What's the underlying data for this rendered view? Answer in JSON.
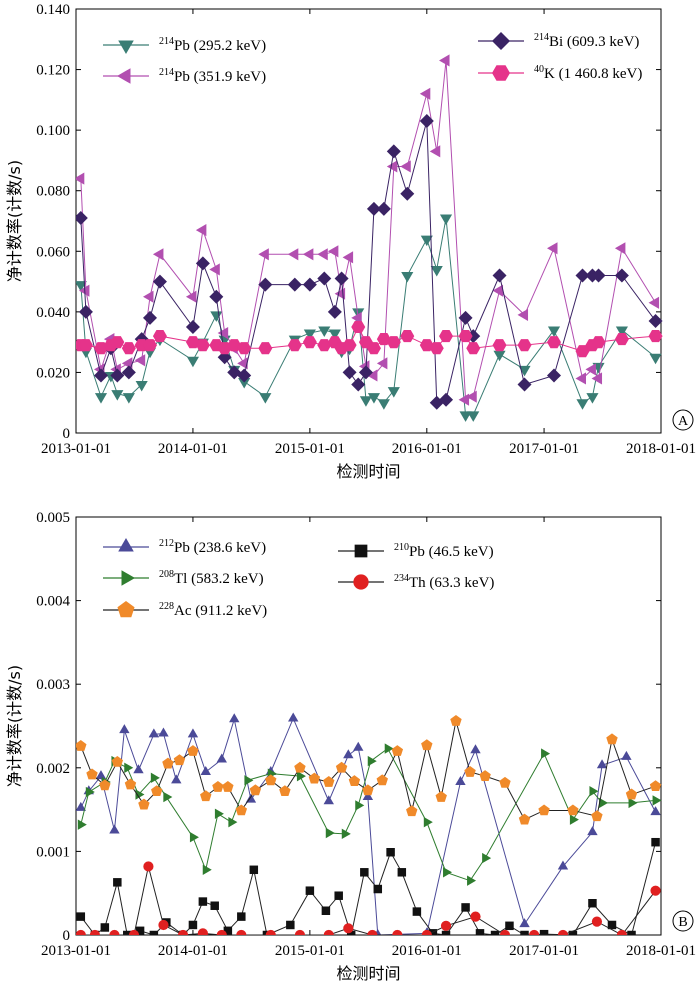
{
  "colors": {
    "pb214_295": "#3a7d74",
    "pb214_351": "#b24fb0",
    "bi214": "#3a2364",
    "k40": "#e5338a",
    "pb212": "#4b4a98",
    "tl208": "#2f7d2f",
    "ac228": "#f08a2a",
    "pb210": "#111111",
    "th234": "#e02020",
    "axis": "#000000"
  },
  "chart_data": [
    {
      "type": "line",
      "panel_label": "A",
      "xlabel": "检测时间",
      "ylabel": "净计数率(计数/s)",
      "xticks": [
        "2013-01-01",
        "2014-01-01",
        "2015-01-01",
        "2016-01-01",
        "2017-01-01",
        "2018-01-01"
      ],
      "yticks": [
        "0",
        "0.020",
        "0.040",
        "0.060",
        "0.080",
        "0.100",
        "0.120",
        "0.140"
      ],
      "xlim": [
        "2013-01-01",
        "2018-01-01"
      ],
      "ylim": [
        0,
        0.14
      ],
      "legend": [
        {
          "key": "pb214_295",
          "iso": "214",
          "el": "Pb",
          "energy": " (295.2 keV)"
        },
        {
          "key": "pb214_351",
          "iso": "214",
          "el": "Pb",
          "energy": " (351.9 keV)"
        },
        {
          "key": "bi214",
          "iso": "214",
          "el": "Bi",
          "energy": " (609.3 keV)"
        },
        {
          "key": "k40",
          "iso": "40",
          "el": "K",
          "energy": " (1 460.8 keV)"
        }
      ],
      "series": [
        {
          "key": "pb214_295",
          "marker": "tri-down",
          "x": [
            "2013-01-16",
            "2013-02-01",
            "2013-03-20",
            "2013-04-20",
            "2013-05-10",
            "2013-06-15",
            "2013-07-25",
            "2013-08-20",
            "2013-09-20",
            "2014-01-01",
            "2014-02-01",
            "2014-03-15",
            "2014-04-10",
            "2014-05-10",
            "2014-06-10",
            "2014-08-15",
            "2014-11-15",
            "2015-01-01",
            "2015-02-15",
            "2015-03-20",
            "2015-04-10",
            "2015-05-05",
            "2015-06-01",
            "2015-06-25",
            "2015-07-20",
            "2015-08-20",
            "2015-09-20",
            "2015-11-01",
            "2016-01-01",
            "2016-02-01",
            "2016-03-01",
            "2016-05-01",
            "2016-05-25",
            "2016-08-15",
            "2016-11-01",
            "2017-02-01",
            "2017-05-01",
            "2017-06-01",
            "2017-06-20",
            "2017-09-01",
            "2017-12-15"
          ],
          "y": [
            0.049,
            0.027,
            0.012,
            0.019,
            0.013,
            0.012,
            0.016,
            0.027,
            0.031,
            0.024,
            0.03,
            0.039,
            0.031,
            0.021,
            0.017,
            0.012,
            0.031,
            0.033,
            0.034,
            0.033,
            0.027,
            0.028,
            0.04,
            0.011,
            0.012,
            0.01,
            0.014,
            0.052,
            0.064,
            0.054,
            0.071,
            0.006,
            0.006,
            0.026,
            0.021,
            0.034,
            0.01,
            0.012,
            0.022,
            0.034,
            0.025
          ]
        },
        {
          "key": "pb214_351",
          "marker": "tri-left",
          "x": [
            "2013-01-16",
            "2013-02-01",
            "2013-03-20",
            "2013-04-20",
            "2013-05-10",
            "2013-06-15",
            "2013-07-25",
            "2013-08-20",
            "2013-09-20",
            "2014-01-01",
            "2014-02-01",
            "2014-03-15",
            "2014-04-10",
            "2014-05-10",
            "2014-06-10",
            "2014-08-15",
            "2014-11-15",
            "2015-01-01",
            "2015-02-15",
            "2015-03-20",
            "2015-04-10",
            "2015-05-05",
            "2015-06-01",
            "2015-06-25",
            "2015-07-20",
            "2015-08-20",
            "2015-09-20",
            "2015-11-01",
            "2016-01-01",
            "2016-02-01",
            "2016-03-01",
            "2016-05-01",
            "2016-05-25",
            "2016-08-15",
            "2016-11-01",
            "2017-02-01",
            "2017-05-01",
            "2017-06-01",
            "2017-06-20",
            "2017-09-01",
            "2017-12-15"
          ],
          "y": [
            0.084,
            0.047,
            0.021,
            0.031,
            0.021,
            0.023,
            0.024,
            0.045,
            0.059,
            0.045,
            0.067,
            0.054,
            0.033,
            0.028,
            0.023,
            0.059,
            0.059,
            0.059,
            0.059,
            0.06,
            0.046,
            0.058,
            0.038,
            0.022,
            0.019,
            0.023,
            0.088,
            0.088,
            0.112,
            0.093,
            0.123,
            0.011,
            0.012,
            0.047,
            0.039,
            0.061,
            0.018,
            0.021,
            0.018,
            0.061,
            0.043
          ]
        },
        {
          "key": "bi214",
          "marker": "diamond",
          "x": [
            "2013-01-16",
            "2013-02-01",
            "2013-03-20",
            "2013-04-20",
            "2013-05-10",
            "2013-06-15",
            "2013-07-25",
            "2013-08-20",
            "2013-09-20",
            "2014-01-01",
            "2014-02-01",
            "2014-03-15",
            "2014-04-10",
            "2014-05-10",
            "2014-06-10",
            "2014-08-15",
            "2014-11-15",
            "2015-01-01",
            "2015-02-15",
            "2015-03-20",
            "2015-04-10",
            "2015-05-05",
            "2015-06-01",
            "2015-06-25",
            "2015-07-20",
            "2015-08-20",
            "2015-09-20",
            "2015-11-01",
            "2016-01-01",
            "2016-02-01",
            "2016-03-01",
            "2016-05-01",
            "2016-05-25",
            "2016-08-15",
            "2016-11-01",
            "2017-02-01",
            "2017-05-01",
            "2017-06-01",
            "2017-06-20",
            "2017-09-01",
            "2017-12-15"
          ],
          "y": [
            0.071,
            0.04,
            0.019,
            0.028,
            0.019,
            0.02,
            0.031,
            0.038,
            0.05,
            0.035,
            0.056,
            0.045,
            0.025,
            0.02,
            0.019,
            0.049,
            0.049,
            0.049,
            0.051,
            0.04,
            0.051,
            0.02,
            0.016,
            0.02,
            0.074,
            0.074,
            0.093,
            0.079,
            0.103,
            0.01,
            0.011,
            0.038,
            0.032,
            0.052,
            0.016,
            0.019,
            0.052,
            0.052,
            0.052,
            0.052,
            0.037
          ]
        },
        {
          "key": "k40",
          "marker": "hexagon",
          "x": [
            "2013-01-16",
            "2013-02-01",
            "2013-03-20",
            "2013-04-20",
            "2013-05-10",
            "2013-06-15",
            "2013-07-25",
            "2013-08-20",
            "2013-09-20",
            "2014-01-01",
            "2014-02-01",
            "2014-03-15",
            "2014-04-10",
            "2014-05-10",
            "2014-06-10",
            "2014-08-15",
            "2014-11-15",
            "2015-01-01",
            "2015-02-15",
            "2015-03-20",
            "2015-04-10",
            "2015-05-05",
            "2015-06-01",
            "2015-06-25",
            "2015-07-20",
            "2015-08-20",
            "2015-09-20",
            "2015-11-01",
            "2016-01-01",
            "2016-02-01",
            "2016-03-01",
            "2016-05-01",
            "2016-05-25",
            "2016-08-15",
            "2016-11-01",
            "2017-02-01",
            "2017-05-01",
            "2017-06-01",
            "2017-06-20",
            "2017-09-01",
            "2017-12-15"
          ],
          "y": [
            0.029,
            0.029,
            0.028,
            0.029,
            0.03,
            0.028,
            0.029,
            0.029,
            0.032,
            0.03,
            0.029,
            0.029,
            0.028,
            0.029,
            0.028,
            0.028,
            0.029,
            0.03,
            0.029,
            0.03,
            0.028,
            0.029,
            0.035,
            0.03,
            0.028,
            0.031,
            0.03,
            0.032,
            0.029,
            0.028,
            0.032,
            0.032,
            0.028,
            0.029,
            0.029,
            0.03,
            0.027,
            0.029,
            0.03,
            0.031,
            0.032
          ]
        }
      ]
    },
    {
      "type": "line",
      "panel_label": "B",
      "xlabel": "检测时间",
      "ylabel": "净计数率(计数/s)",
      "xticks": [
        "2013-01-01",
        "2014-01-01",
        "2015-01-01",
        "2016-01-01",
        "2017-01-01",
        "2018-01-01"
      ],
      "yticks": [
        "0",
        "0.001",
        "0.002",
        "0.003",
        "0.004",
        "0.005"
      ],
      "xlim": [
        "2013-01-01",
        "2018-01-01"
      ],
      "ylim": [
        0,
        0.005
      ],
      "legend": [
        {
          "key": "pb212",
          "iso": "212",
          "el": "Pb",
          "energy": " (238.6 keV)"
        },
        {
          "key": "tl208",
          "iso": "208",
          "el": "Tl",
          "energy": " (583.2 keV)"
        },
        {
          "key": "ac228",
          "iso": "228",
          "el": "Ac",
          "energy": " (911.2 keV)"
        },
        {
          "key": "pb210",
          "iso": "210",
          "el": "Pb",
          "energy": " (46.5 keV)"
        },
        {
          "key": "th234",
          "iso": "234",
          "el": "Th",
          "energy": " (63.3 keV)"
        }
      ],
      "series": [
        {
          "key": "pb212",
          "marker": "tri-up",
          "x": [
            "2013-01-16",
            "2013-02-10",
            "2013-03-20",
            "2013-05-01",
            "2013-06-01",
            "2013-07-15",
            "2013-09-01",
            "2013-10-01",
            "2013-11-10",
            "2014-01-01",
            "2014-02-10",
            "2014-04-01",
            "2014-05-10",
            "2014-07-01",
            "2014-09-01",
            "2014-11-10",
            "2015-03-01",
            "2015-05-01",
            "2015-06-01",
            "2015-07-01",
            "2015-08-01",
            "2016-01-01",
            "2016-04-15",
            "2016-06-01",
            "2016-11-01",
            "2017-03-01",
            "2017-06-01",
            "2017-07-01",
            "2017-09-15",
            "2017-12-15"
          ],
          "y": [
            0.00152,
            0.00172,
            0.0019,
            0.00125,
            0.00245,
            0.00197,
            0.0024,
            0.00241,
            0.00185,
            0.0024,
            0.00195,
            0.0021,
            0.00258,
            0.00162,
            0.00195,
            0.00259,
            0.0016,
            0.00215,
            0.00224,
            0.00165,
            0.0,
            2e-05,
            0.00183,
            0.00221,
            0.00013,
            0.00082,
            0.00123,
            0.00203,
            0.00213,
            0.00147
          ]
        },
        {
          "key": "tl208",
          "marker": "tri-right",
          "x": [
            "2013-01-16",
            "2013-02-10",
            "2013-04-01",
            "2013-05-01",
            "2013-06-10",
            "2013-07-15",
            "2013-09-01",
            "2013-10-10",
            "2014-01-01",
            "2014-02-10",
            "2014-03-20",
            "2014-05-01",
            "2014-06-20",
            "2014-09-01",
            "2014-12-01",
            "2015-03-01",
            "2015-04-20",
            "2015-06-01",
            "2015-07-10",
            "2015-09-01",
            "2016-01-01",
            "2016-03-01",
            "2016-05-15",
            "2016-07-01",
            "2017-01-01",
            "2017-04-01",
            "2017-06-01",
            "2017-07-01",
            "2017-10-01",
            "2017-12-15"
          ],
          "y": [
            0.00132,
            0.00171,
            0.00183,
            0.00208,
            0.002,
            0.00168,
            0.00188,
            0.00165,
            0.00117,
            0.00078,
            0.00145,
            0.00135,
            0.00185,
            0.00193,
            0.0019,
            0.00122,
            0.00121,
            0.00155,
            0.00208,
            0.00223,
            0.00135,
            0.00075,
            0.00065,
            0.00092,
            0.00217,
            0.00138,
            0.00172,
            0.00158,
            0.00158,
            0.00161
          ]
        },
        {
          "key": "ac228",
          "marker": "pentagon",
          "x": [
            "2013-01-16",
            "2013-02-20",
            "2013-04-01",
            "2013-05-10",
            "2013-06-20",
            "2013-08-01",
            "2013-09-10",
            "2013-10-15",
            "2013-11-20",
            "2014-01-01",
            "2014-02-10",
            "2014-03-20",
            "2014-04-20",
            "2014-06-01",
            "2014-07-15",
            "2014-09-01",
            "2014-10-15",
            "2014-12-01",
            "2015-01-15",
            "2015-03-01",
            "2015-04-10",
            "2015-05-20",
            "2015-07-01",
            "2015-08-15",
            "2015-10-01",
            "2015-11-15",
            "2016-01-01",
            "2016-02-15",
            "2016-04-01",
            "2016-05-15",
            "2016-07-01",
            "2016-09-01",
            "2016-11-01",
            "2017-01-01",
            "2017-04-01",
            "2017-06-15",
            "2017-08-01",
            "2017-10-01",
            "2017-12-15"
          ],
          "y": [
            0.00226,
            0.00192,
            0.00179,
            0.00207,
            0.0018,
            0.00156,
            0.00172,
            0.00205,
            0.00209,
            0.0022,
            0.00166,
            0.00177,
            0.00177,
            0.00149,
            0.00173,
            0.00185,
            0.00172,
            0.002,
            0.00187,
            0.00183,
            0.002,
            0.00184,
            0.00173,
            0.00185,
            0.0022,
            0.00148,
            0.00227,
            0.00165,
            0.00256,
            0.00195,
            0.0019,
            0.00182,
            0.00138,
            0.00149,
            0.00149,
            0.00142,
            0.00234,
            0.00168,
            0.00178
          ]
        },
        {
          "key": "pb210",
          "marker": "square",
          "x": [
            "2013-01-16",
            "2013-03-01",
            "2013-04-01",
            "2013-05-10",
            "2013-06-10",
            "2013-07-20",
            "2013-09-01",
            "2013-10-10",
            "2013-12-01",
            "2014-01-01",
            "2014-02-01",
            "2014-03-10",
            "2014-04-20",
            "2014-06-01",
            "2014-07-10",
            "2014-08-20",
            "2014-11-01",
            "2015-01-01",
            "2015-02-20",
            "2015-04-01",
            "2015-05-10",
            "2015-06-20",
            "2015-08-01",
            "2015-09-10",
            "2015-10-15",
            "2015-12-01",
            "2016-01-20",
            "2016-03-01",
            "2016-05-01",
            "2016-06-15",
            "2016-08-01",
            "2016-09-15",
            "2016-11-01",
            "2017-01-01",
            "2017-04-01",
            "2017-06-01",
            "2017-08-01",
            "2017-10-01",
            "2017-12-15"
          ],
          "y": [
            0.00022,
            0.0,
            9e-05,
            0.00063,
            0.0,
            5e-05,
            0.0,
            0.00015,
            0.0,
            0.00012,
            0.0004,
            0.00035,
            5e-05,
            0.00022,
            0.00078,
            0.0,
            0.00012,
            0.00053,
            0.00029,
            0.00047,
            0.0,
            0.00075,
            0.00055,
            0.00099,
            0.00075,
            0.00028,
            2e-05,
            0.0,
            0.00033,
            2e-05,
            0.0,
            0.00011,
            0.0,
            1e-05,
            0.0,
            0.00038,
            0.00012,
            0.0,
            0.00111
          ]
        },
        {
          "key": "th234",
          "marker": "circle",
          "x": [
            "2013-01-16",
            "2013-03-01",
            "2013-05-01",
            "2013-07-01",
            "2013-08-15",
            "2013-10-01",
            "2013-12-01",
            "2014-02-01",
            "2014-04-01",
            "2014-06-01",
            "2014-09-01",
            "2014-12-01",
            "2015-03-01",
            "2015-05-01",
            "2015-07-15",
            "2015-10-01",
            "2016-01-01",
            "2016-03-01",
            "2016-06-01",
            "2016-09-01",
            "2016-12-01",
            "2017-03-01",
            "2017-06-15",
            "2017-09-01",
            "2017-12-15"
          ],
          "y": [
            0.0,
            0.0,
            0.0,
            0.0,
            0.00082,
            0.00012,
            0.0,
            2e-05,
            0.0,
            0.0,
            0.0,
            0.0,
            0.0,
            8e-05,
            0.0,
            0.0,
            0.0,
            0.00011,
            0.00022,
            0.0,
            0.0,
            0.0,
            0.00016,
            0.0,
            0.00053
          ]
        }
      ]
    }
  ]
}
